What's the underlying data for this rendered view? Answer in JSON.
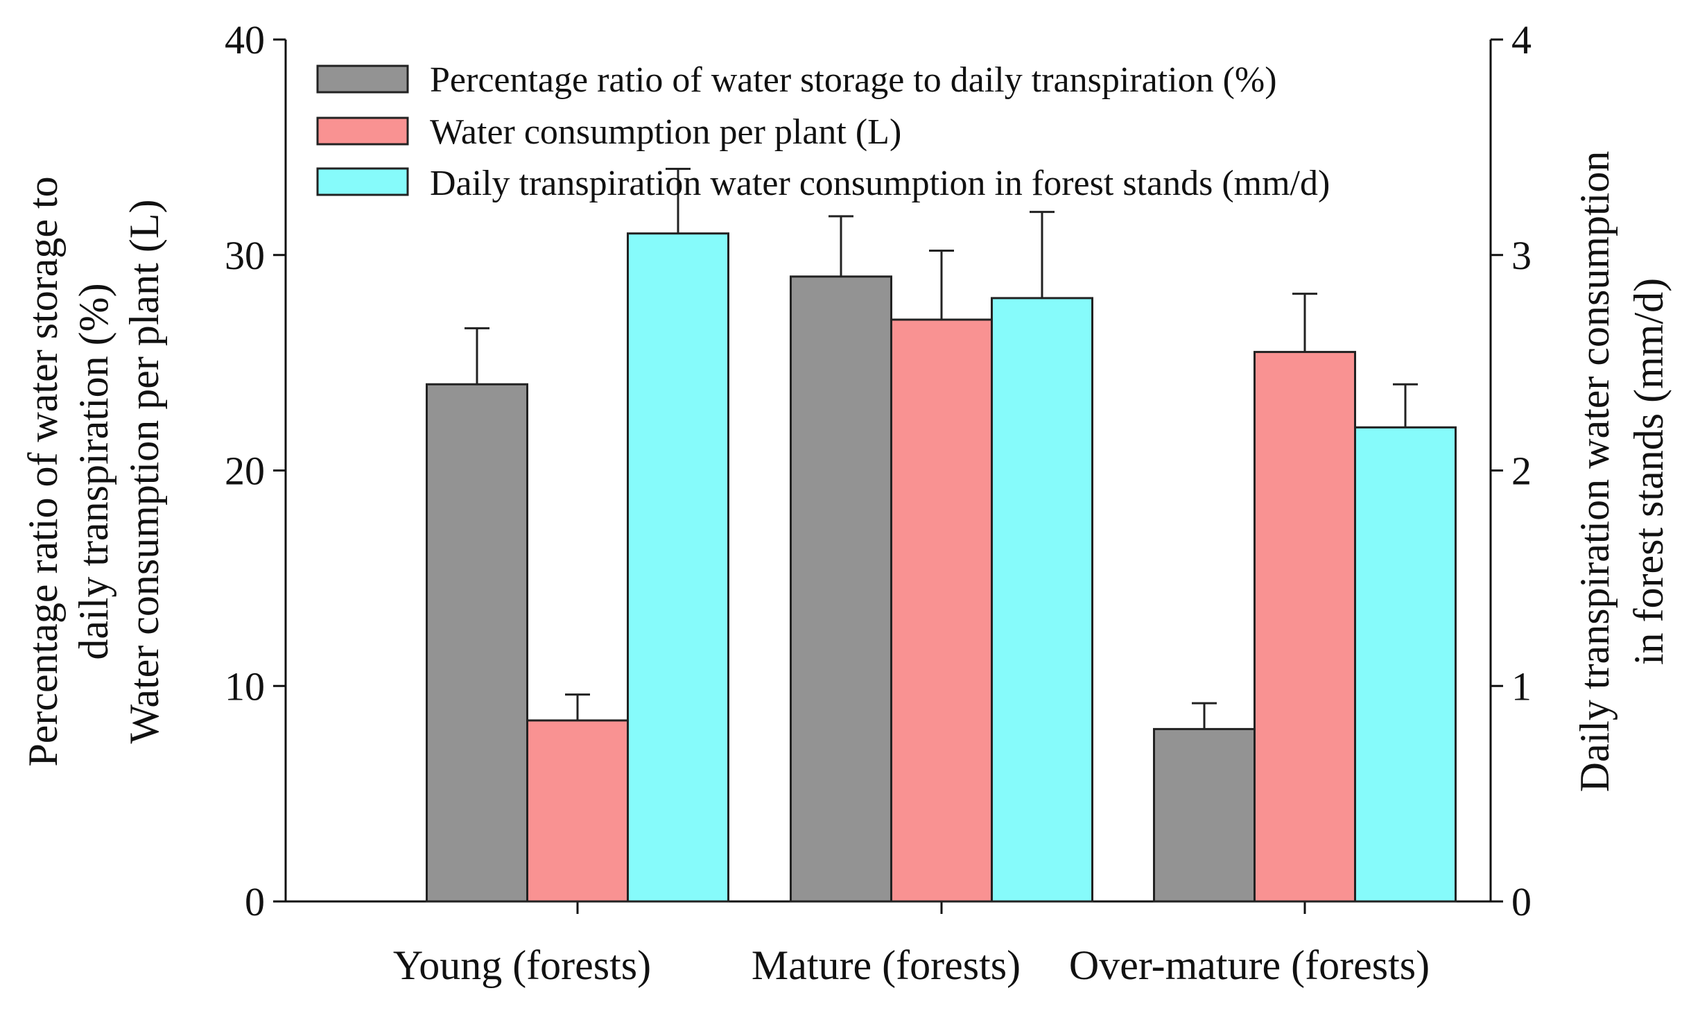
{
  "chart_data": {
    "type": "bar",
    "categories": [
      "Young (forests)",
      "Mature (forests)",
      "Over-mature (forests)"
    ],
    "series": [
      {
        "name": "Percentage ratio of water storage to daily transpiration (%)",
        "axis": "left",
        "color": "#939393",
        "values": [
          24,
          29,
          8
        ],
        "errors": [
          2.6,
          2.8,
          1.2
        ]
      },
      {
        "name": "Water consumption per plant (L)",
        "axis": "left",
        "color": "#f99292",
        "values": [
          8.4,
          27,
          25.5
        ],
        "errors": [
          1.2,
          3.2,
          2.7
        ]
      },
      {
        "name": "Daily transpiration water consumption in forest stands (mm/d)",
        "axis": "right",
        "color": "#86fbfb",
        "values": [
          3.1,
          2.8,
          2.2
        ],
        "errors": [
          0.3,
          0.4,
          0.2
        ]
      }
    ],
    "left_axis": {
      "label_lines": [
        "Percentage ratio of water storage to",
        "daily transpiration (%)",
        "Water consumption per plant (L)"
      ],
      "ylim": [
        0,
        40
      ],
      "ticks": [
        0,
        10,
        20,
        30,
        40
      ]
    },
    "right_axis": {
      "label_lines": [
        "Daily transpiration water consumption",
        "in forest stands (mm/d)"
      ],
      "ylim": [
        0,
        4
      ],
      "ticks": [
        0,
        1,
        2,
        3,
        4
      ]
    },
    "legend_position": "top",
    "grid": false
  }
}
